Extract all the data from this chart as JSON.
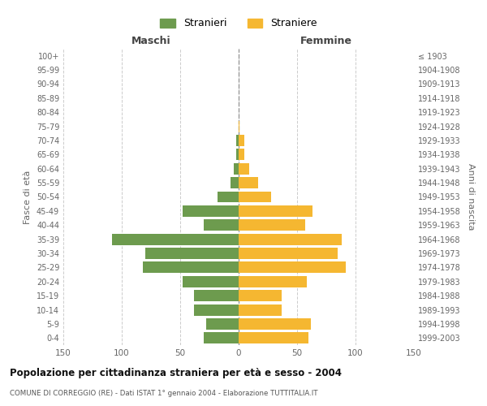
{
  "age_groups": [
    "0-4",
    "5-9",
    "10-14",
    "15-19",
    "20-24",
    "25-29",
    "30-34",
    "35-39",
    "40-44",
    "45-49",
    "50-54",
    "55-59",
    "60-64",
    "65-69",
    "70-74",
    "75-79",
    "80-84",
    "85-89",
    "90-94",
    "95-99",
    "100+"
  ],
  "birth_years": [
    "1999-2003",
    "1994-1998",
    "1989-1993",
    "1984-1988",
    "1979-1983",
    "1974-1978",
    "1969-1973",
    "1964-1968",
    "1959-1963",
    "1954-1958",
    "1949-1953",
    "1944-1948",
    "1939-1943",
    "1934-1938",
    "1929-1933",
    "1924-1928",
    "1919-1923",
    "1914-1918",
    "1909-1913",
    "1904-1908",
    "≤ 1903"
  ],
  "maschi": [
    30,
    28,
    38,
    38,
    48,
    82,
    80,
    108,
    30,
    48,
    18,
    7,
    4,
    2,
    2,
    0,
    0,
    0,
    0,
    0,
    0
  ],
  "femmine": [
    60,
    62,
    37,
    37,
    58,
    92,
    85,
    88,
    57,
    63,
    28,
    17,
    9,
    5,
    5,
    1,
    0,
    0,
    0,
    0,
    0
  ],
  "color_maschi": "#6d9b4e",
  "color_femmine": "#f5b731",
  "title": "Popolazione per cittadinanza straniera per età e sesso - 2004",
  "subtitle": "COMUNE DI CORREGGIO (RE) - Dati ISTAT 1° gennaio 2004 - Elaborazione TUTTITALIA.IT",
  "ylabel_left": "Fasce di età",
  "ylabel_right": "Anni di nascita",
  "label_maschi": "Maschi",
  "label_femmine": "Femmine",
  "legend_stranieri": "Stranieri",
  "legend_straniere": "Straniere",
  "xlim": 150,
  "background_color": "#ffffff",
  "grid_color": "#cccccc"
}
